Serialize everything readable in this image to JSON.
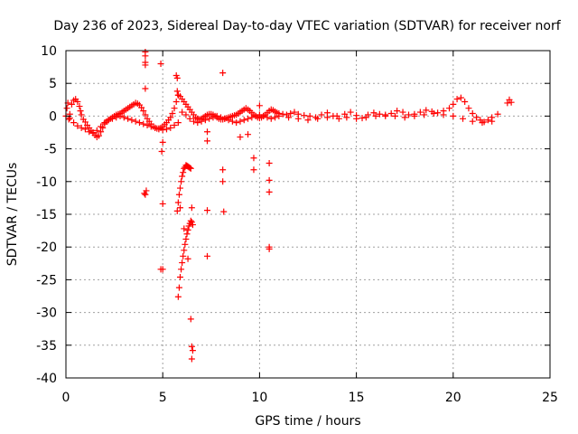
{
  "chart_data": {
    "type": "scatter",
    "title": "Day 236 of 2023, Sidereal Day-to-day VTEC variation (SDTVAR) for receiver norf",
    "xlabel": "GPS time / hours",
    "ylabel": "SDTVAR / TECUs",
    "xlim": [
      0,
      25
    ],
    "ylim": [
      -40,
      10
    ],
    "xticks": [
      0,
      5,
      10,
      15,
      20,
      25
    ],
    "yticks": [
      10,
      5,
      0,
      -5,
      -10,
      -15,
      -20,
      -25,
      -30,
      -35,
      -40
    ],
    "grid": true,
    "marker": "+",
    "color": "#ff0000",
    "series": [
      {
        "name": "SDTVAR",
        "x": [
          0.0,
          0.05,
          0.1,
          0.15,
          0.2,
          0.3,
          0.4,
          0.5,
          0.6,
          0.7,
          0.75,
          0.8,
          0.9,
          1.0,
          1.1,
          1.2,
          1.3,
          1.4,
          1.5,
          1.6,
          1.7,
          1.8,
          1.9,
          2.0,
          2.1,
          2.2,
          2.3,
          2.4,
          2.5,
          2.6,
          2.7,
          2.8,
          2.9,
          3.0,
          3.1,
          3.2,
          3.3,
          3.4,
          3.5,
          3.6,
          3.7,
          3.8,
          3.9,
          4.0,
          4.1,
          4.2,
          4.3,
          4.4,
          4.5,
          4.6,
          4.7,
          4.8,
          4.9,
          5.0,
          5.1,
          5.2,
          5.3,
          5.4,
          5.5,
          5.6,
          5.7,
          5.8,
          5.9,
          6.0,
          6.1,
          6.2,
          6.3,
          6.4,
          6.5,
          6.6,
          6.7,
          6.8,
          6.9,
          7.0,
          7.1,
          7.2,
          7.3,
          7.4,
          7.5,
          7.6,
          7.7,
          7.8,
          7.9,
          8.0,
          8.1,
          8.2,
          8.3,
          8.4,
          8.5,
          8.6,
          8.7,
          8.8,
          8.9,
          9.0,
          9.1,
          9.2,
          9.3,
          9.4,
          9.5,
          9.6,
          9.7,
          9.8,
          9.9,
          10.0,
          10.1,
          10.2,
          10.3,
          10.4,
          10.5,
          10.6,
          10.7,
          10.8,
          10.9,
          11.0,
          11.2,
          11.4,
          11.6,
          11.8,
          12.0,
          12.3,
          12.6,
          12.9,
          13.2,
          13.5,
          13.8,
          14.1,
          14.4,
          14.7,
          15.0,
          15.3,
          15.6,
          15.9,
          16.2,
          16.5,
          16.8,
          17.1,
          17.4,
          17.7,
          18.0,
          18.3,
          18.6,
          18.9,
          19.2,
          19.5,
          19.8,
          20.0,
          20.2,
          20.4,
          20.6,
          20.8,
          21.0,
          21.2,
          21.4,
          21.6,
          21.8,
          22.0,
          22.3,
          22.8,
          22.9,
          23.0,
          0.2,
          0.4,
          0.6,
          0.8,
          1.0,
          1.2,
          1.4,
          1.6,
          1.8,
          2.0,
          2.2,
          2.4,
          2.6,
          2.8,
          3.0,
          3.2,
          3.4,
          3.6,
          3.8,
          4.0,
          4.2,
          4.4,
          4.6,
          4.8,
          5.0,
          5.2,
          5.4,
          5.6,
          5.8,
          6.0,
          6.2,
          6.4,
          6.6,
          6.8,
          7.0,
          7.2,
          7.4,
          7.6,
          7.8,
          8.0,
          8.2,
          8.4,
          8.6,
          8.8,
          9.0,
          9.2,
          9.4,
          9.6,
          9.8,
          10.0,
          10.2,
          10.4,
          10.6,
          10.8,
          11.0,
          11.5,
          12.0,
          12.5,
          13.0,
          13.5,
          14.0,
          14.5,
          15.0,
          15.5,
          16.0,
          16.5,
          17.0,
          17.5,
          18.0,
          18.5,
          19.0,
          19.5,
          20.0,
          20.5,
          21.0,
          21.5,
          22.0,
          4.1,
          4.1,
          4.1,
          4.1,
          4.1,
          4.15,
          4.05,
          4.1,
          4.9,
          5.0,
          4.95,
          5.0,
          5.7,
          5.75,
          5.75,
          5.8,
          5.9,
          6.1,
          6.3,
          6.45,
          6.5,
          6.55,
          6.5,
          6.5,
          7.3,
          7.3,
          7.3,
          7.3,
          8.1,
          8.1,
          8.1,
          8.15,
          9.0,
          9.4,
          9.7,
          9.7,
          10.0,
          10.5,
          10.5,
          10.5,
          10.5,
          10.5,
          4.9,
          5.0,
          5.75,
          5.8,
          5.85,
          5.9,
          5.95,
          6.0,
          6.05,
          6.1,
          6.15,
          6.2,
          6.25,
          6.3,
          6.35,
          6.4,
          6.45,
          5.8,
          5.85,
          5.9,
          5.95,
          6.0,
          6.05,
          6.1,
          6.15,
          6.2,
          6.25,
          6.3,
          6.35,
          6.4,
          6.45,
          6.5,
          6.55
        ],
        "y": [
          0.0,
          1.2,
          2.0,
          -0.5,
          0.3,
          1.8,
          2.4,
          2.6,
          2.2,
          1.5,
          0.8,
          0.2,
          -0.5,
          -0.9,
          -1.4,
          -1.8,
          -2.2,
          -2.5,
          -2.9,
          -3.2,
          -3.0,
          -2.4,
          -1.8,
          -1.2,
          -0.8,
          -0.6,
          -0.4,
          -0.2,
          0.0,
          0.2,
          0.3,
          0.4,
          0.6,
          0.8,
          1.0,
          1.2,
          1.4,
          1.6,
          1.8,
          2.0,
          1.9,
          1.7,
          1.3,
          0.8,
          0.2,
          -0.4,
          -0.8,
          -1.2,
          -1.6,
          -1.8,
          -1.9,
          -1.9,
          -1.8,
          -1.6,
          -1.3,
          -1.0,
          -0.6,
          -0.2,
          0.4,
          1.2,
          2.2,
          3.2,
          3.0,
          2.6,
          2.2,
          1.8,
          1.4,
          1.0,
          0.6,
          0.2,
          -0.2,
          -0.4,
          -0.5,
          -0.4,
          -0.2,
          0.0,
          0.2,
          0.3,
          0.3,
          0.2,
          0.0,
          -0.2,
          -0.4,
          -0.5,
          -0.5,
          -0.4,
          -0.3,
          -0.2,
          -0.1,
          0.0,
          0.1,
          0.2,
          0.4,
          0.6,
          0.8,
          1.0,
          1.2,
          1.0,
          0.8,
          0.5,
          0.2,
          0.0,
          -0.2,
          -0.3,
          -0.2,
          0.0,
          0.2,
          0.5,
          0.8,
          1.0,
          0.9,
          0.7,
          0.5,
          0.4,
          0.3,
          0.2,
          0.4,
          0.6,
          0.3,
          0.1,
          0.0,
          -0.2,
          0.2,
          0.5,
          0.0,
          -0.4,
          0.3,
          0.6,
          0.1,
          -0.3,
          0.2,
          0.5,
          0.3,
          0.0,
          0.4,
          0.8,
          0.6,
          0.2,
          0.3,
          0.6,
          0.9,
          0.7,
          0.5,
          0.8,
          1.2,
          1.8,
          2.6,
          2.8,
          2.2,
          1.2,
          0.4,
          -0.2,
          -0.6,
          -0.9,
          -0.6,
          -0.2,
          0.3,
          2.0,
          2.5,
          2.1,
          -0.3,
          -1.0,
          -1.5,
          -1.8,
          -2.0,
          -2.4,
          -2.6,
          -2.2,
          -1.6,
          -1.0,
          -0.6,
          -0.4,
          -0.2,
          0.0,
          -0.2,
          -0.4,
          -0.6,
          -0.8,
          -1.0,
          -1.2,
          -1.4,
          -1.6,
          -1.8,
          -2.0,
          -2.1,
          -2.0,
          -1.8,
          -1.4,
          -1.0,
          0.6,
          0.2,
          -0.4,
          -0.8,
          -1.0,
          -0.8,
          -0.6,
          -0.4,
          -0.2,
          0.0,
          -0.2,
          -0.4,
          -0.6,
          -0.8,
          -1.0,
          -0.8,
          -0.6,
          -0.4,
          -0.2,
          0.0,
          0.2,
          0.0,
          -0.2,
          -0.4,
          -0.2,
          0.0,
          -0.2,
          -0.4,
          -0.6,
          -0.4,
          -0.2,
          0.0,
          -0.2,
          -0.4,
          -0.2,
          0.0,
          0.2,
          0.0,
          -0.2,
          0.0,
          0.2,
          0.4,
          0.2,
          0.0,
          -0.4,
          -0.8,
          -1.0,
          -0.8,
          9.8,
          9.2,
          8.2,
          7.8,
          4.2,
          -11.4,
          -11.8,
          -12.0,
          8.0,
          -4.0,
          -5.4,
          -23.4,
          6.2,
          5.8,
          3.8,
          3.2,
          -14.0,
          -17.2,
          -21.8,
          -31.0,
          -35.2,
          -35.8,
          -37.1,
          -14.0,
          -2.4,
          -3.8,
          -14.4,
          -21.4,
          6.6,
          -8.2,
          -10.0,
          -14.6,
          -3.2,
          -2.8,
          -6.4,
          -8.2,
          1.6,
          -7.2,
          -9.8,
          -11.6,
          -20.0,
          -20.3,
          -23.4,
          -13.4,
          -14.5,
          -13.2,
          -12.0,
          -11.0,
          -10.0,
          -9.2,
          -8.6,
          -8.0,
          -7.8,
          -7.5,
          -7.6,
          -7.7,
          -7.8,
          -7.9,
          -8.0,
          -27.6,
          -26.2,
          -24.6,
          -23.4,
          -22.4,
          -21.4,
          -20.5,
          -19.6,
          -18.8,
          -18.0,
          -17.4,
          -16.8,
          -16.4,
          -16.0,
          -16.2,
          -16.6
        ]
      }
    ]
  }
}
